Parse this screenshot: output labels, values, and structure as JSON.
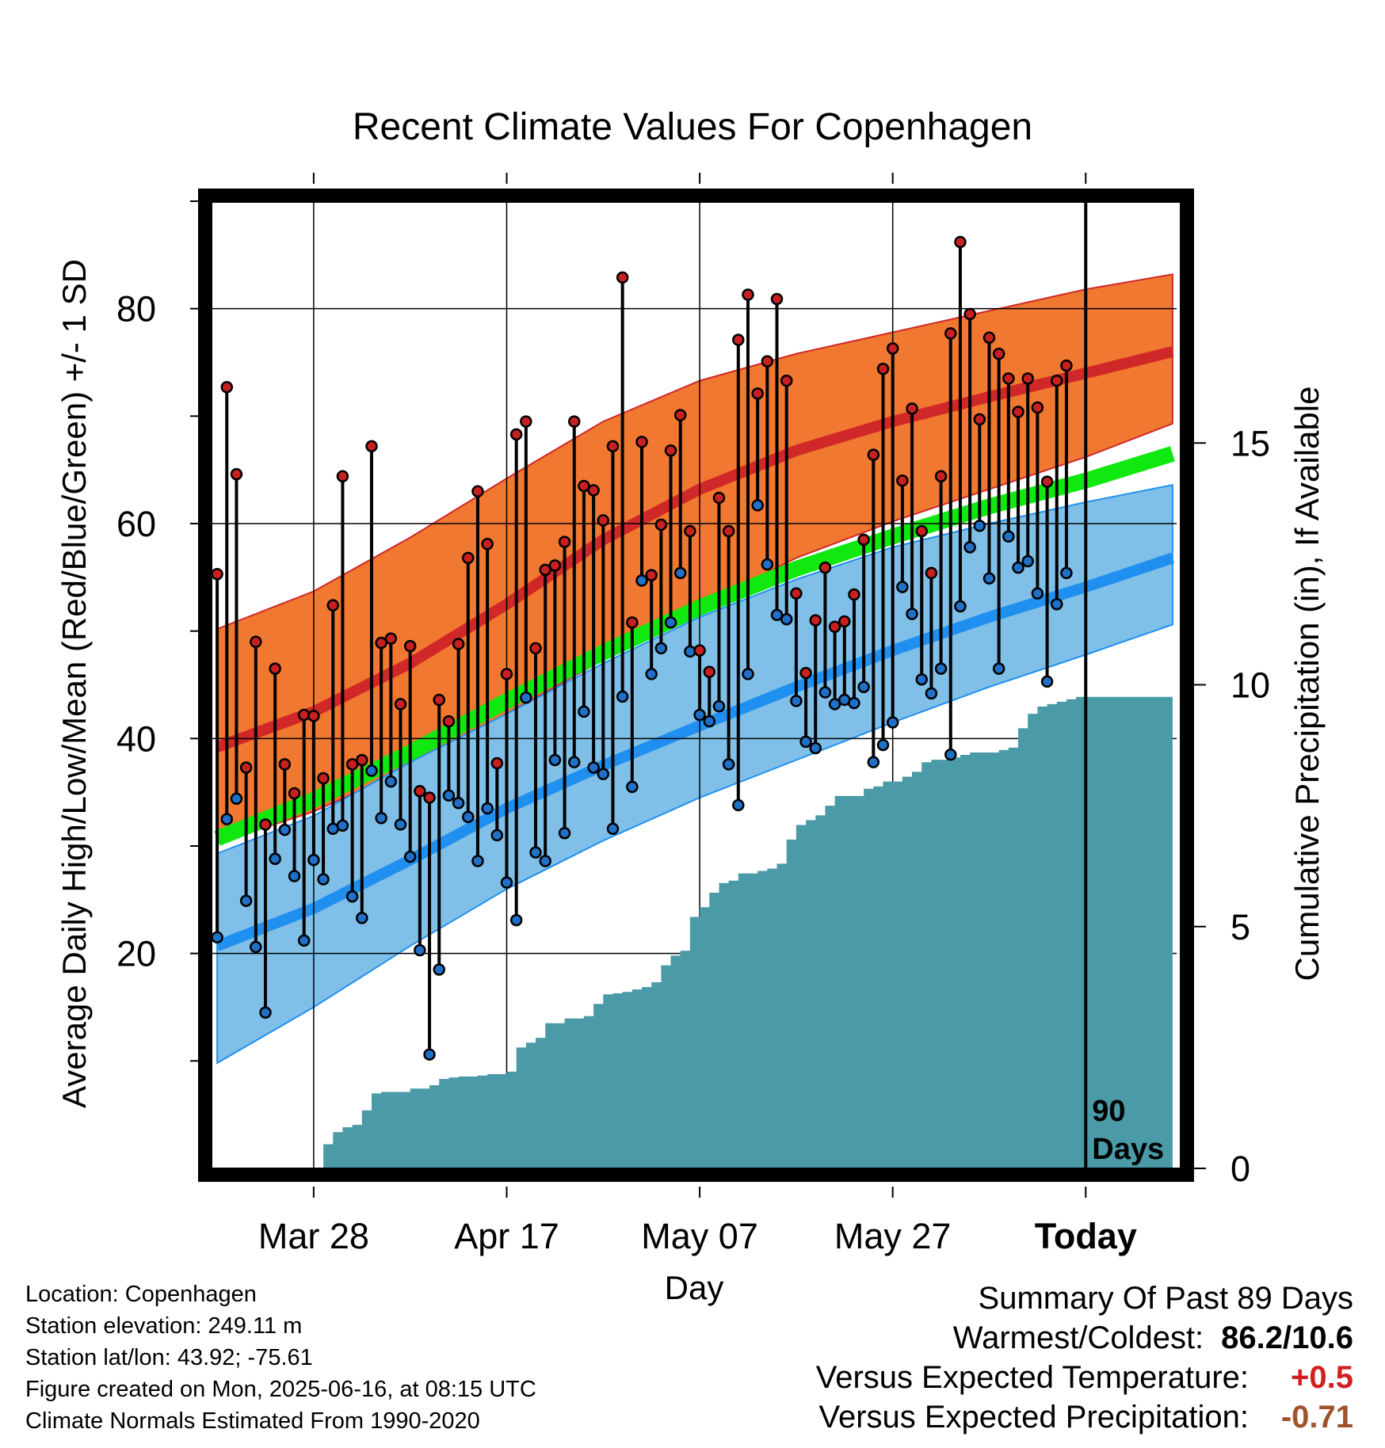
{
  "chart_data": {
    "type": "line",
    "title": "Recent Climate Values For Copenhagen",
    "xlabel": "Day",
    "ylabel": "Average Daily High/Low/Mean (Red/Blue/Green) +/- 1 SD",
    "y2label": "Cumulative Precipitation (in), If Available",
    "x_tick_labels": [
      "Mar 28",
      "Apr 17",
      "May 07",
      "May 27",
      "Today"
    ],
    "x_tick_days": [
      10,
      30,
      50,
      70,
      90
    ],
    "xlim": [
      -0.5,
      99.5
    ],
    "ylim": [
      0,
      90
    ],
    "y_ticks": [
      20,
      40,
      60,
      80
    ],
    "y2lim": [
      0,
      20
    ],
    "y2_ticks": [
      0,
      5,
      10,
      15
    ],
    "today_marker": "90\nDays",
    "colors": {
      "high_band": "#f07830",
      "high_mean": "#d02828",
      "low_band": "#80c0e8",
      "low_mean": "#2090f0",
      "mean": "#10e810",
      "high_marker": "#c82020",
      "low_marker": "#2070c8",
      "precip": "#4a9aa8"
    },
    "normals": {
      "x": [
        0,
        10,
        20,
        30,
        40,
        50,
        60,
        70,
        80,
        90,
        99
      ],
      "high_mean": [
        39.2,
        42.5,
        47.0,
        52.5,
        58.5,
        63.2,
        66.8,
        69.5,
        71.8,
        74.0,
        76.0
      ],
      "high_upper": [
        50.2,
        53.7,
        58.7,
        64.2,
        69.5,
        73.3,
        75.8,
        77.8,
        79.8,
        81.8,
        83.2
      ],
      "high_lower": [
        30.3,
        33.2,
        37.3,
        42.3,
        47.3,
        52.3,
        56.8,
        60.2,
        63.2,
        66.2,
        69.3
      ],
      "low_mean": [
        20.7,
        24.2,
        28.7,
        33.5,
        37.5,
        41.2,
        44.8,
        48.2,
        51.3,
        54.1,
        56.8
      ],
      "low_upper": [
        29.3,
        32.8,
        37.8,
        42.3,
        47.0,
        51.3,
        54.8,
        57.8,
        60.0,
        62.0,
        63.6
      ],
      "low_lower": [
        9.8,
        15.0,
        20.7,
        26.0,
        30.5,
        34.5,
        38.0,
        41.5,
        44.8,
        47.8,
        50.6
      ],
      "mean": [
        30.7,
        34.3,
        38.7,
        43.5,
        48.0,
        52.2,
        55.8,
        58.8,
        61.6,
        64.0,
        66.5
      ]
    },
    "series": [
      {
        "name": "Daily High",
        "values": [
          55.3,
          72.7,
          64.6,
          37.3,
          49.0,
          32.0,
          46.5,
          37.6,
          34.9,
          42.2,
          42.1,
          36.3,
          52.4,
          64.4,
          37.6,
          38.0,
          67.2,
          48.9,
          49.3,
          43.2,
          48.6,
          35.1,
          34.5,
          43.6,
          41.6,
          48.8,
          56.8,
          63.0,
          58.1,
          37.7,
          46.0,
          68.3,
          69.5,
          48.4,
          55.7,
          56.1,
          58.3,
          69.5,
          63.5,
          63.1,
          60.3,
          67.2,
          82.9,
          50.8,
          67.6,
          55.2,
          59.9,
          66.8,
          70.1,
          59.3,
          48.2,
          46.2,
          62.4,
          59.3,
          77.1,
          81.3,
          72.1,
          75.1,
          80.9,
          73.3,
          53.5,
          46.1,
          51.0,
          55.9,
          50.4,
          50.9,
          53.4,
          58.5,
          66.4,
          74.4,
          76.3,
          64.0,
          70.7,
          59.3,
          55.4,
          64.4,
          77.7,
          86.2,
          79.5,
          69.7,
          77.3,
          75.8,
          73.5,
          70.4,
          73.5,
          70.8,
          63.9,
          73.3,
          74.7
        ]
      },
      {
        "name": "Daily Low",
        "values": [
          21.5,
          32.5,
          34.4,
          24.9,
          20.6,
          14.5,
          28.8,
          31.5,
          27.2,
          21.2,
          28.7,
          26.9,
          31.6,
          31.9,
          25.3,
          23.3,
          37.0,
          32.6,
          36.0,
          32.0,
          29.0,
          20.3,
          10.6,
          18.5,
          34.7,
          34.0,
          32.7,
          28.6,
          33.5,
          31.0,
          26.6,
          23.1,
          43.8,
          29.4,
          28.6,
          38.0,
          31.2,
          37.8,
          42.5,
          37.3,
          36.7,
          31.6,
          43.9,
          35.5,
          54.7,
          46.0,
          48.4,
          50.8,
          55.4,
          48.1,
          42.2,
          41.6,
          43.0,
          37.6,
          33.8,
          46.0,
          61.7,
          56.2,
          51.5,
          51.1,
          43.5,
          39.7,
          39.1,
          44.3,
          43.2,
          43.6,
          43.3,
          44.8,
          37.8,
          39.4,
          41.5,
          54.1,
          51.6,
          45.5,
          44.2,
          46.5,
          38.5,
          52.3,
          57.8,
          59.8,
          54.9,
          46.5,
          58.8,
          55.9,
          56.5,
          53.5,
          45.3,
          52.5,
          55.4
        ]
      },
      {
        "name": "Cumulative Precipitation",
        "x": [
          10,
          11,
          12,
          13,
          14,
          15,
          16,
          17,
          20,
          22,
          23,
          24,
          25,
          26,
          27,
          28,
          29,
          30,
          31,
          32,
          33,
          34,
          35,
          36,
          38,
          39,
          40,
          41,
          42,
          43,
          44,
          45,
          46,
          47,
          48,
          49,
          50,
          51,
          52,
          53,
          54,
          56,
          57,
          58,
          59,
          60,
          61,
          62,
          63,
          64,
          65,
          67,
          68,
          69,
          70,
          71,
          72,
          73,
          74,
          75,
          76,
          77,
          78,
          79,
          80,
          81,
          82,
          83,
          84,
          85,
          86,
          87,
          88,
          89,
          90,
          95,
          99
        ],
        "values": [
          0.0,
          0.5,
          0.75,
          0.85,
          0.9,
          1.2,
          1.55,
          1.58,
          1.65,
          1.72,
          1.85,
          1.88,
          1.9,
          1.9,
          1.92,
          1.95,
          1.95,
          2.0,
          2.5,
          2.6,
          2.7,
          3.0,
          3.0,
          3.1,
          3.15,
          3.4,
          3.6,
          3.62,
          3.65,
          3.7,
          3.75,
          3.85,
          4.2,
          4.4,
          4.5,
          5.2,
          5.4,
          5.7,
          5.9,
          5.95,
          6.1,
          6.15,
          6.2,
          6.3,
          6.8,
          7.1,
          7.2,
          7.3,
          7.5,
          7.7,
          7.7,
          7.85,
          7.9,
          8.0,
          8.0,
          8.1,
          8.2,
          8.4,
          8.45,
          8.45,
          8.5,
          8.55,
          8.6,
          8.6,
          8.6,
          8.65,
          8.7,
          9.1,
          9.4,
          9.55,
          9.6,
          9.65,
          9.7,
          9.75,
          9.75,
          9.75,
          9.75
        ]
      }
    ]
  },
  "meta": {
    "location": "Location: Copenhagen",
    "elevation": "Station elevation: 249.11 m",
    "latlon": "Station lat/lon: 43.92; -75.61",
    "created": "Figure created on Mon, 2025-06-16, at 08:15 UTC",
    "normals": "Climate Normals Estimated From 1990-2020"
  },
  "summary": {
    "title": "Summary Of Past 89 Days",
    "warmest_coldest_label": "Warmest/Coldest:",
    "warmest_coldest_value": "86.2/10.6",
    "temp_label": "Versus Expected Temperature:",
    "temp_value": "+0.5",
    "temp_color": "#d02020",
    "precip_label": "Versus Expected Precipitation:",
    "precip_value": "-0.71",
    "precip_color": "#a0522d"
  }
}
